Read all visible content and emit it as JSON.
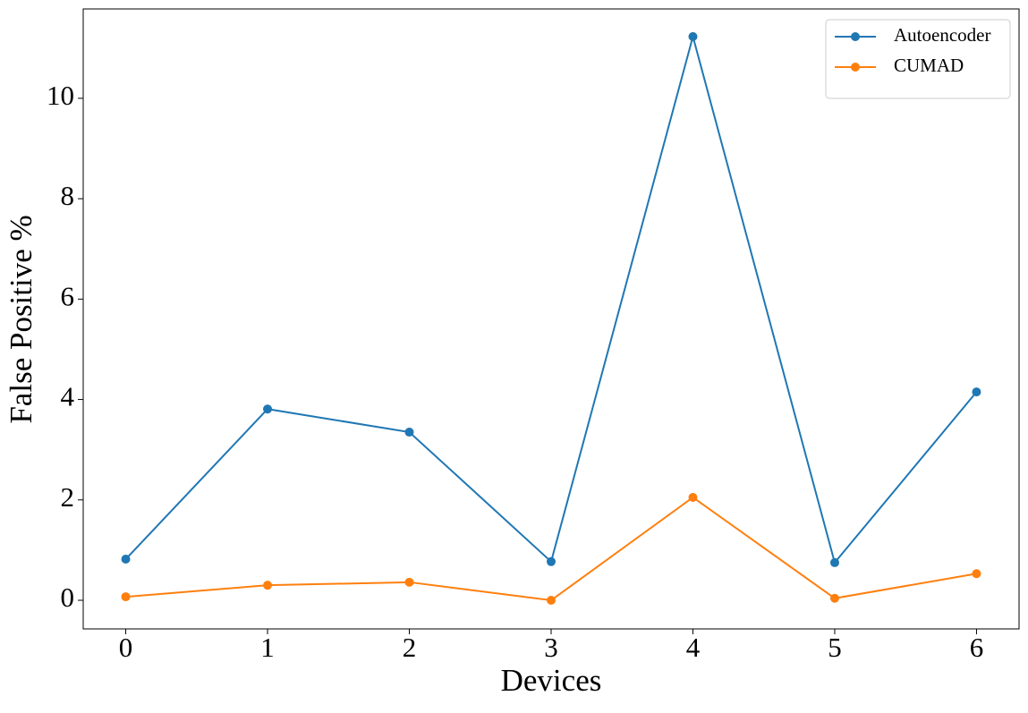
{
  "chart_data": {
    "type": "line",
    "xlabel": "Devices",
    "ylabel": "False Positive %",
    "x": [
      0,
      1,
      2,
      3,
      4,
      5,
      6
    ],
    "series": [
      {
        "name": "Autoencoder",
        "color": "#1f77b4",
        "values": [
          0.82,
          3.81,
          3.35,
          0.77,
          11.23,
          0.75,
          4.15
        ]
      },
      {
        "name": "CUMAD",
        "color": "#ff7f0e",
        "values": [
          0.07,
          0.3,
          0.36,
          0.0,
          2.05,
          0.04,
          0.53
        ]
      }
    ],
    "xlim": [
      -0.3,
      6.3
    ],
    "xticks": [
      0,
      1,
      2,
      3,
      4,
      5,
      6
    ],
    "ylim": [
      -0.57,
      11.78
    ],
    "yticks": [
      0,
      2,
      4,
      6,
      8,
      10
    ],
    "grid": false,
    "legend": "upper right"
  }
}
